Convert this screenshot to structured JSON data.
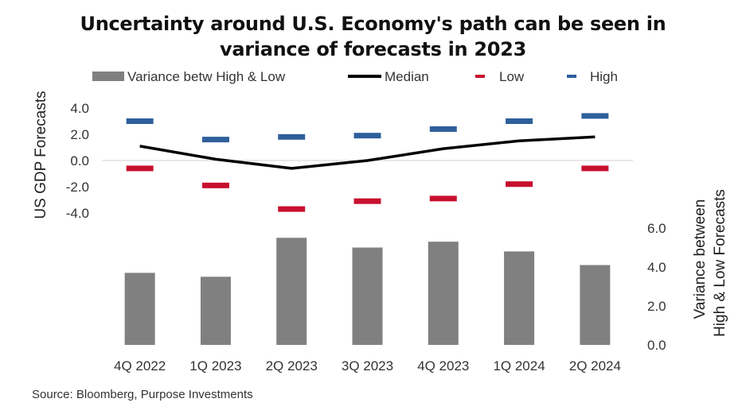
{
  "chart_data": {
    "type": "bar+line",
    "title_line1": "Uncertainty around U.S. Economy's path can be seen in",
    "title_line2": "variance of forecasts in 2023",
    "categories": [
      "4Q 2022",
      "1Q 2023",
      "2Q 2023",
      "3Q 2023",
      "4Q 2023",
      "1Q 2024",
      "2Q 2024"
    ],
    "series": [
      {
        "name": "Variance betw High & Low",
        "type": "bar",
        "axis": "right",
        "color": "#808080",
        "values": [
          3.7,
          3.5,
          5.5,
          5.0,
          5.3,
          4.8,
          4.1
        ]
      },
      {
        "name": "Median",
        "type": "line",
        "axis": "left",
        "color": "#000000",
        "values": [
          1.1,
          0.1,
          -0.6,
          0.0,
          0.9,
          1.5,
          1.8
        ]
      },
      {
        "name": "Low",
        "type": "marker",
        "axis": "left",
        "color": "#c8102e",
        "values": [
          -0.6,
          -1.9,
          -3.7,
          -3.1,
          -2.9,
          -1.8,
          -0.6
        ]
      },
      {
        "name": "High",
        "type": "marker",
        "axis": "left",
        "color": "#2e5f9b",
        "values": [
          3.0,
          1.6,
          1.8,
          1.9,
          2.4,
          3.0,
          3.4
        ]
      }
    ],
    "left_axis": {
      "label": "US GDP Forecasts",
      "ticks": [
        "4.0",
        "2.0",
        "0.0",
        "-2.0",
        "-4.0"
      ],
      "tick_values": [
        4,
        2,
        0,
        -2,
        -4
      ]
    },
    "right_axis": {
      "label_line1": "Variance between",
      "label_line2": "High & Low Forecasts",
      "ticks": [
        "6.0",
        "4.0",
        "2.0",
        "0.0"
      ],
      "tick_values": [
        6,
        4,
        2,
        0
      ]
    },
    "legend_position": "top"
  },
  "source": "Source: Bloomberg, Purpose Investments"
}
